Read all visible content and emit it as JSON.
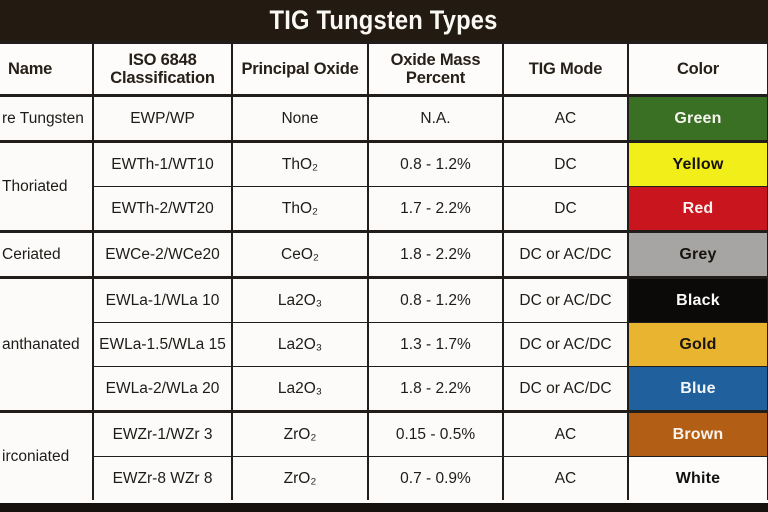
{
  "title": "TIG Tungsten Types",
  "headers": [
    "Name",
    "ISO 6848 Classification",
    "Principal Oxide",
    "Oxide Mass Percent",
    "TIG Mode",
    "Color"
  ],
  "groups": [
    {
      "name": "re Tungsten",
      "rows": [
        {
          "iso": "EWP/WP",
          "oxide": "None",
          "mass": "N.A.",
          "mode": "AC",
          "color": {
            "label": "Green",
            "bg": "#3a7023",
            "text": "#f6f4ee"
          }
        }
      ]
    },
    {
      "name": "Thoriated",
      "rows": [
        {
          "iso": "EWTh-1/WT10",
          "oxide": "ThO₂",
          "mass": "0.8 - 1.2%",
          "mode": "DC",
          "color": {
            "label": "Yellow",
            "bg": "#f2ee19",
            "text": "#14110e"
          }
        },
        {
          "iso": "EWTh-2/WT20",
          "oxide": "ThO₂",
          "mass": "1.7 - 2.2%",
          "mode": "DC",
          "color": {
            "label": "Red",
            "bg": "#c9151d",
            "text": "#f8f2ef"
          }
        }
      ]
    },
    {
      "name": "Ceriated",
      "rows": [
        {
          "iso": "EWCe-2/WCe20",
          "oxide": "CeO₂",
          "mass": "1.8 - 2.2%",
          "mode": "DC or AC/DC",
          "color": {
            "label": "Grey",
            "bg": "#a6a5a3",
            "text": "#17130f"
          }
        }
      ]
    },
    {
      "name": "anthanated",
      "rows": [
        {
          "iso": "EWLa-1/WLa 10",
          "oxide": "La2O₃",
          "mass": "0.8 - 1.2%",
          "mode": "DC or AC/DC",
          "color": {
            "label": "Black",
            "bg": "#0c0a09",
            "text": "#fbfaf8"
          }
        },
        {
          "iso": "EWLa-1.5/WLa 15",
          "oxide": "La2O₃",
          "mass": "1.3 - 1.7%",
          "mode": "DC or AC/DC",
          "color": {
            "label": "Gold",
            "bg": "#e9b530",
            "text": "#19140d"
          }
        },
        {
          "iso": "EWLa-2/WLa 20",
          "oxide": "La2O₃",
          "mass": "1.8 - 2.2%",
          "mode": "DC or AC/DC",
          "color": {
            "label": "Blue",
            "bg": "#20609d",
            "text": "#f4f6f8"
          }
        }
      ]
    },
    {
      "name": "irconiated",
      "rows": [
        {
          "iso": "EWZr-1/WZr 3",
          "oxide": "ZrO₂",
          "mass": "0.15 - 0.5%",
          "mode": "AC",
          "color": {
            "label": "Brown",
            "bg": "#b25e14",
            "text": "#f9f4ee"
          }
        },
        {
          "iso": "EWZr-8 WZr 8",
          "oxide": "ZrO₂",
          "mass": "0.7 - 0.9%",
          "mode": "AC",
          "color": {
            "label": "White",
            "bg": "#fdfcfa",
            "text": "#131110"
          }
        }
      ]
    }
  ],
  "colors": {
    "title_bar_bg": "#231a12",
    "title_text": "#faf8f3",
    "bottom_bar_bg": "#18120e",
    "table_border": "#201d1a",
    "cell_bg": "#fcfbf9"
  }
}
